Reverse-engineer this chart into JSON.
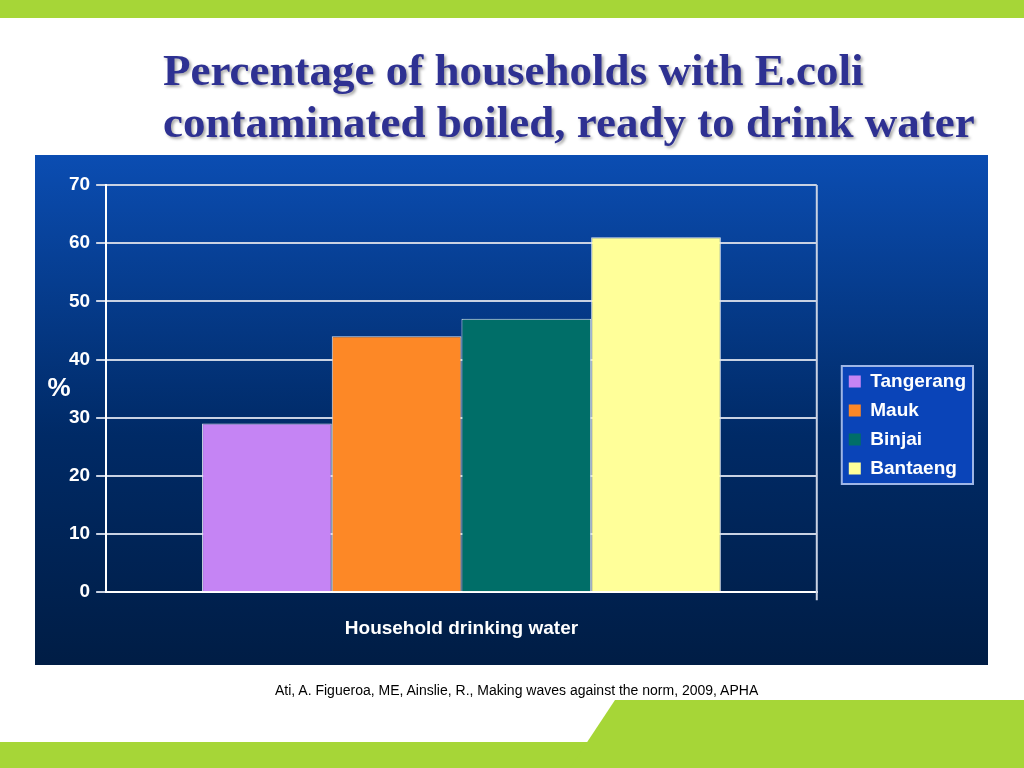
{
  "chart_data": {
    "type": "bar",
    "title": "Percentage of households with E.coli contaminated boiled, ready to drink water",
    "categories": [
      "Household drinking water"
    ],
    "series": [
      {
        "name": "Tangerang",
        "color": "#c584f4",
        "values": [
          29
        ]
      },
      {
        "name": "Mauk",
        "color": "#fd8826",
        "values": [
          44
        ]
      },
      {
        "name": "Binjai",
        "color": "#006e68",
        "values": [
          47
        ]
      },
      {
        "name": "Bantaeng",
        "color": "#ffff99",
        "values": [
          61
        ]
      }
    ],
    "ylabel": "%",
    "ylim": [
      0,
      70
    ],
    "yticks": [
      0,
      10,
      20,
      30,
      40,
      50,
      60,
      70
    ],
    "grid": "y",
    "legend": "right",
    "annotations": [
      "Ati, A. Figueroa, ME, Ainslie, R., Making waves against the norm, 2009, APHA"
    ]
  }
}
